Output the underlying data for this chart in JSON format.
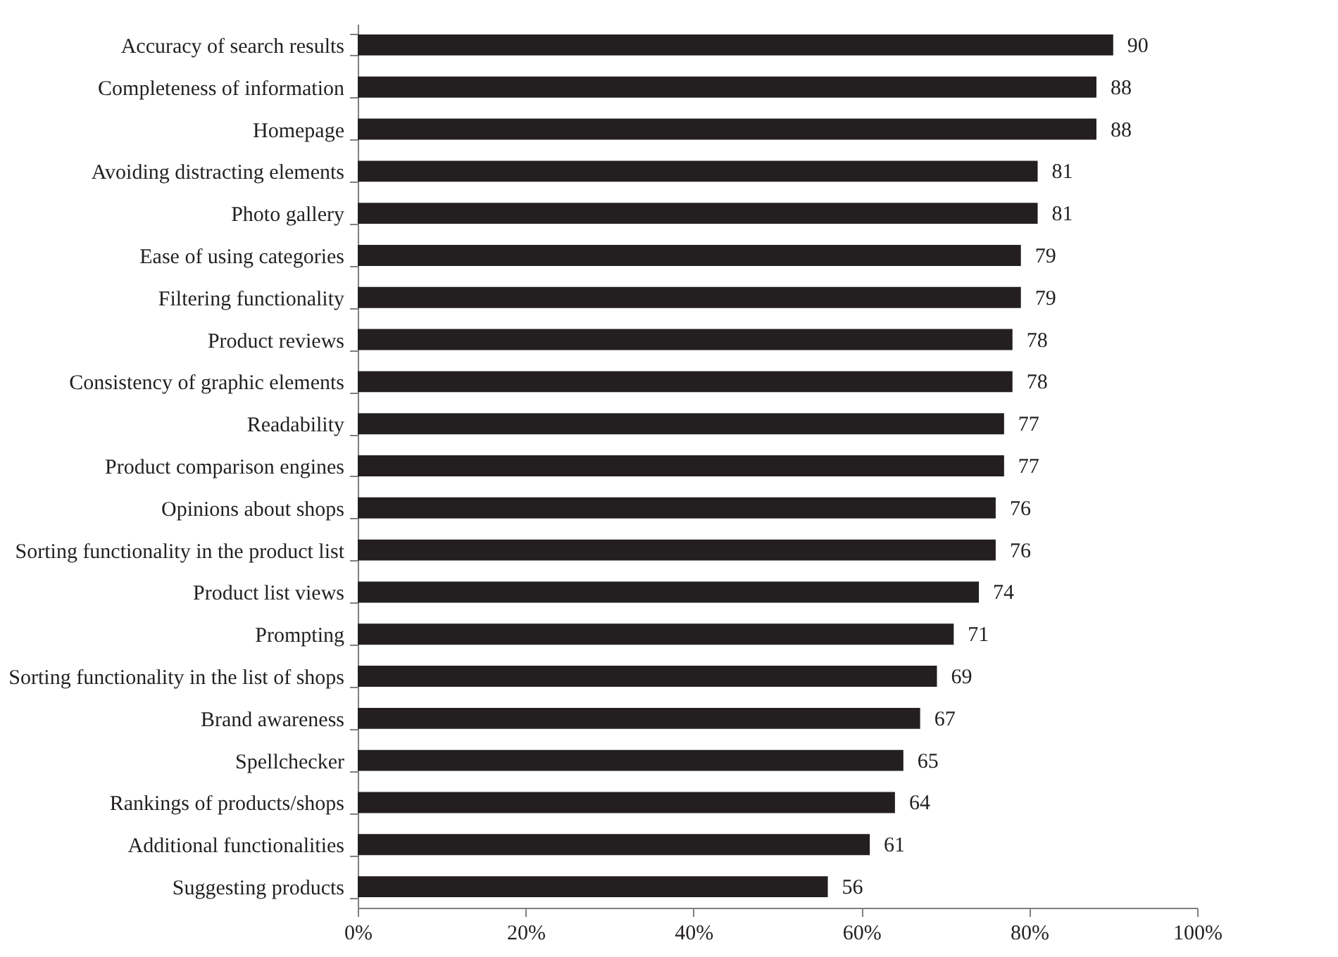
{
  "chart_data": {
    "type": "bar",
    "orientation": "horizontal",
    "categories": [
      "Accuracy of search results",
      "Completeness of information",
      "Homepage",
      "Avoiding distracting elements",
      "Photo gallery",
      "Ease of using categories",
      "Filtering functionality",
      "Product reviews",
      "Consistency of graphic elements",
      "Readability",
      "Product comparison engines",
      "Opinions about shops",
      "Sorting functionality in the product list",
      "Product list views",
      "Prompting",
      "Sorting functionality in the list of shops",
      "Brand awareness",
      "Spellchecker",
      "Rankings of products/shops",
      "Additional functionalities",
      "Suggesting products"
    ],
    "values": [
      90,
      88,
      88,
      81,
      81,
      79,
      79,
      78,
      78,
      77,
      77,
      76,
      76,
      74,
      71,
      69,
      67,
      65,
      64,
      61,
      56
    ],
    "color": "#231f20",
    "xlim": [
      0,
      100
    ],
    "xticks": [
      {
        "value": 0,
        "label": "0%"
      },
      {
        "value": 20,
        "label": "20%"
      },
      {
        "value": 40,
        "label": "40%"
      },
      {
        "value": 60,
        "label": "60%"
      },
      {
        "value": 80,
        "label": "80%"
      },
      {
        "value": 100,
        "label": "100%"
      }
    ],
    "data_labels": true,
    "grid": false
  }
}
